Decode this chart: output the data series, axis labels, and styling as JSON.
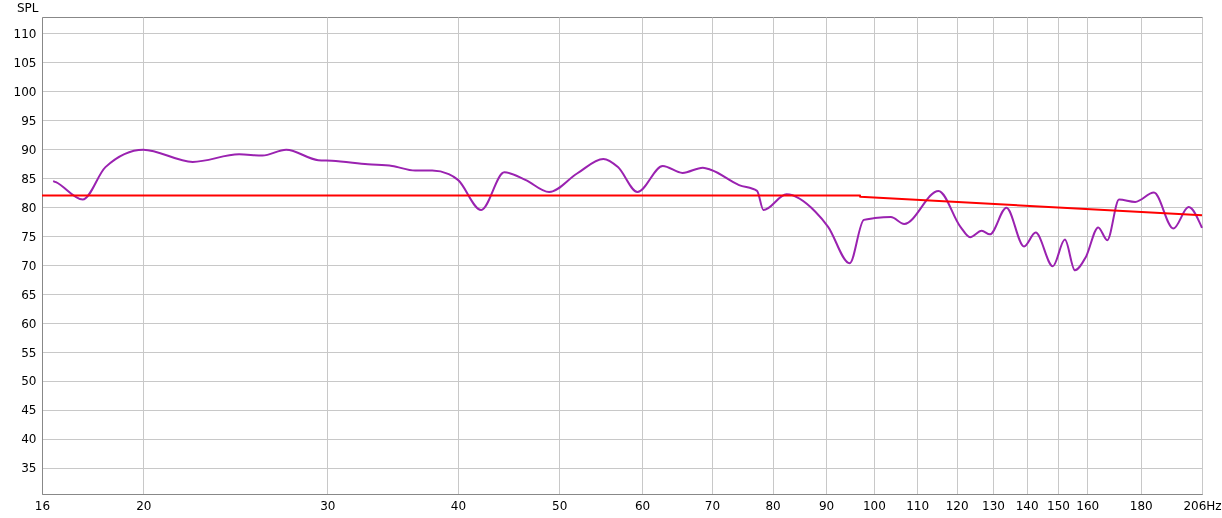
{
  "chart_data": {
    "type": "line",
    "ylabel": "SPL",
    "log": "x",
    "grid": true,
    "marker": "none",
    "line_style": "solid",
    "xlim": [
      16,
      206
    ],
    "ylim": [
      30.5,
      112.8
    ],
    "xticks": [
      16,
      20,
      30,
      40,
      50,
      60,
      70,
      80,
      90,
      100,
      110,
      120,
      130,
      140,
      150,
      160,
      180,
      {
        "value": 206,
        "label": "206Hz"
      }
    ],
    "yticks": [
      35,
      40,
      45,
      50,
      55,
      60,
      65,
      70,
      75,
      80,
      85,
      90,
      95,
      100,
      105,
      110
    ],
    "series": [
      {
        "color": "#9a22b0",
        "x": [
          16.4,
          16.5,
          17.5,
          18.4,
          20,
          22.3,
          24.7,
          26.0,
          27.4,
          29.4,
          30.3,
          32.8,
          34.6,
          36.4,
          37.8,
          39.2,
          40.0,
          42.1,
          44.3,
          46.4,
          48.9,
          52.0,
          55.1,
          56.9,
          59.4,
          62.8,
          65.6,
          68.6,
          69.9,
          74.3,
          77.3,
          78.4,
          82.5,
          87.9,
          90.4,
          94.8,
          97.8,
          100.2,
          103.8,
          106.9,
          115.3,
          121.0,
          123.6,
          126.8,
          129.1,
          133.9,
          139.2,
          142.8,
          148.3,
          152.3,
          155.7,
          159.5,
          163.9,
          167.2,
          171.6,
          177.8,
          185.3,
          193.4,
          200,
          206
        ],
        "values": [
          84.5,
          84.3,
          81.3,
          86.9,
          89.9,
          87.8,
          89.1,
          88.9,
          89.9,
          88.1,
          88.0,
          87.4,
          87.1,
          86.3,
          86.3,
          85.7,
          84.7,
          79.5,
          86.0,
          84.7,
          82.6,
          85.8,
          88.3,
          86.9,
          82.6,
          87.1,
          85.9,
          86.8,
          86.4,
          83.8,
          82.8,
          79.5,
          82.2,
          79.2,
          76.6,
          70.3,
          77.8,
          78.1,
          78.3,
          77.1,
          82.8,
          76.6,
          74.8,
          75.9,
          75.3,
          79.9,
          73.2,
          75.6,
          69.8,
          74.4,
          69.1,
          71.4,
          76.5,
          74.3,
          81.3,
          80.9,
          82.5,
          76.3,
          80.0,
          76.4
        ]
      },
      {
        "color": "#ff0000",
        "x": [
          16,
          97,
          97,
          206
        ],
        "values": [
          82,
          82,
          81.8,
          78.6
        ]
      }
    ]
  }
}
